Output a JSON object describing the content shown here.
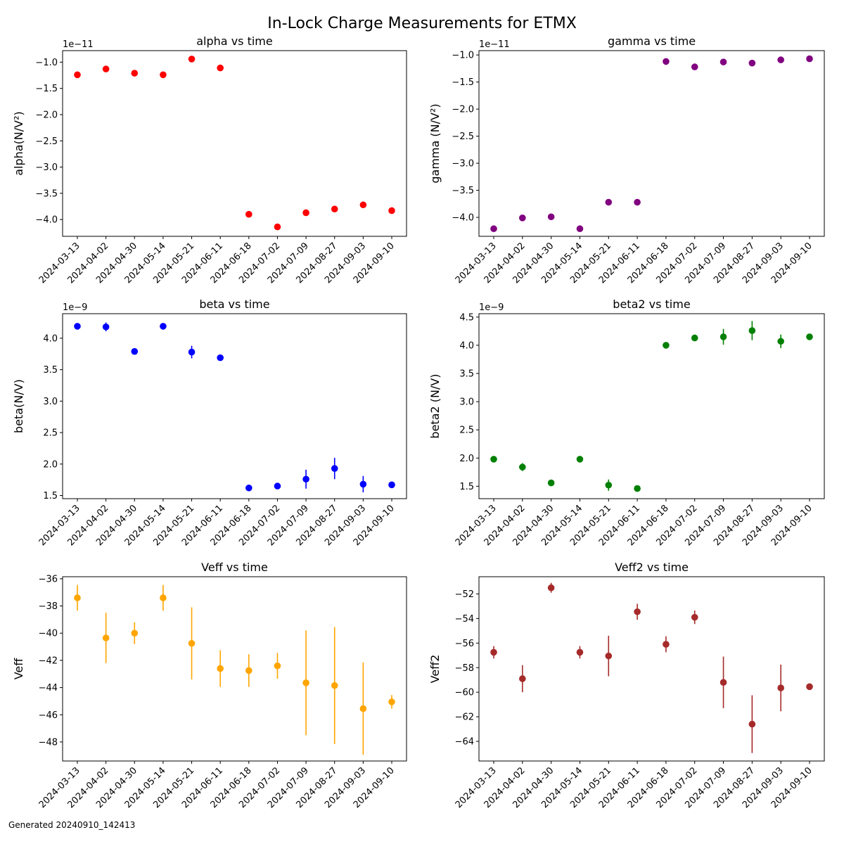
{
  "figure": {
    "title": "In-Lock Charge Measurements for ETMX",
    "footer": "Generated 20240910_142413"
  },
  "chart_data": [
    {
      "type": "scatter",
      "title": "alpha vs time",
      "ylabel": "alpha(N/V²)",
      "offset_label": "1e−11",
      "color": "#ff0000",
      "categories": [
        "2024-03-13",
        "2024-04-02",
        "2024-04-30",
        "2024-05-14",
        "2024-05-21",
        "2024-06-11",
        "2024-06-18",
        "2024-07-02",
        "2024-07-09",
        "2024-08-27",
        "2024-09-03",
        "2024-09-10"
      ],
      "values": [
        -1.24,
        -1.13,
        -1.21,
        -1.24,
        -0.94,
        -1.11,
        -3.9,
        -4.14,
        -3.87,
        -3.8,
        -3.72,
        -3.83
      ],
      "errors": [
        0.02,
        0.02,
        0.02,
        0.02,
        0.02,
        0.02,
        0.02,
        0.02,
        0.02,
        0.02,
        0.02,
        0.02
      ],
      "ylim": [
        -4.32,
        -0.78
      ],
      "yticks": [
        -4.0,
        -3.5,
        -3.0,
        -2.5,
        -2.0,
        -1.5,
        -1.0
      ],
      "yticklabels": [
        "−4.0",
        "−3.5",
        "−3.0",
        "−2.5",
        "−2.0",
        "−1.5",
        "−1.0"
      ]
    },
    {
      "type": "scatter",
      "title": "gamma vs time",
      "ylabel": "gamma (N/V²)",
      "offset_label": "1e−11",
      "color": "#800080",
      "categories": [
        "2024-03-13",
        "2024-04-02",
        "2024-04-30",
        "2024-05-14",
        "2024-05-21",
        "2024-06-11",
        "2024-06-18",
        "2024-07-02",
        "2024-07-09",
        "2024-08-27",
        "2024-09-03",
        "2024-09-10"
      ],
      "values": [
        -4.21,
        -4.01,
        -3.99,
        -4.21,
        -3.72,
        -3.72,
        -1.12,
        -1.22,
        -1.13,
        -1.15,
        -1.09,
        -1.07
      ],
      "errors": [
        0.02,
        0.02,
        0.02,
        0.02,
        0.02,
        0.02,
        0.02,
        0.02,
        0.02,
        0.02,
        0.02,
        0.02
      ],
      "ylim": [
        -4.35,
        -0.92
      ],
      "yticks": [
        -4.0,
        -3.5,
        -3.0,
        -2.5,
        -2.0,
        -1.5,
        -1.0
      ],
      "yticklabels": [
        "−4.0",
        "−3.5",
        "−3.0",
        "−2.5",
        "−2.0",
        "−1.5",
        "−1.0"
      ]
    },
    {
      "type": "scatter",
      "title": "beta vs time",
      "ylabel": "beta(N/V)",
      "offset_label": "1e−9",
      "color": "#0000ff",
      "categories": [
        "2024-03-13",
        "2024-04-02",
        "2024-04-30",
        "2024-05-14",
        "2024-05-21",
        "2024-06-11",
        "2024-06-18",
        "2024-07-02",
        "2024-07-09",
        "2024-08-27",
        "2024-09-03",
        "2024-09-10"
      ],
      "values": [
        4.19,
        4.18,
        3.79,
        4.19,
        3.78,
        3.69,
        1.62,
        1.65,
        1.76,
        1.93,
        1.68,
        1.67
      ],
      "errors": [
        0.03,
        0.07,
        0.03,
        0.03,
        0.1,
        0.03,
        0.03,
        0.03,
        0.15,
        0.17,
        0.13,
        0.03
      ],
      "ylim": [
        1.45,
        4.39
      ],
      "yticks": [
        1.5,
        2.0,
        2.5,
        3.0,
        3.5,
        4.0
      ],
      "yticklabels": [
        "1.5",
        "2.0",
        "2.5",
        "3.0",
        "3.5",
        "4.0"
      ]
    },
    {
      "type": "scatter",
      "title": "beta2 vs time",
      "ylabel": "beta2 (N/V)",
      "offset_label": "1e−9",
      "color": "#008000",
      "categories": [
        "2024-03-13",
        "2024-04-02",
        "2024-04-30",
        "2024-05-14",
        "2024-05-21",
        "2024-06-11",
        "2024-06-18",
        "2024-07-02",
        "2024-07-09",
        "2024-08-27",
        "2024-09-03",
        "2024-09-10"
      ],
      "values": [
        1.98,
        1.84,
        1.56,
        1.98,
        1.52,
        1.46,
        4.0,
        4.13,
        4.15,
        4.26,
        4.07,
        4.15
      ],
      "errors": [
        0.03,
        0.07,
        0.03,
        0.03,
        0.1,
        0.03,
        0.03,
        0.03,
        0.14,
        0.17,
        0.12,
        0.03
      ],
      "ylim": [
        1.28,
        4.56
      ],
      "yticks": [
        1.5,
        2.0,
        2.5,
        3.0,
        3.5,
        4.0,
        4.5
      ],
      "yticklabels": [
        "1.5",
        "2.0",
        "2.5",
        "3.0",
        "3.5",
        "4.0",
        "4.5"
      ]
    },
    {
      "type": "scatter",
      "title": "Veff vs time",
      "ylabel": "Veff",
      "offset_label": "",
      "color": "#ffa500",
      "categories": [
        "2024-03-13",
        "2024-04-02",
        "2024-04-30",
        "2024-05-14",
        "2024-05-21",
        "2024-06-11",
        "2024-06-18",
        "2024-07-02",
        "2024-07-09",
        "2024-08-27",
        "2024-09-03",
        "2024-09-10"
      ],
      "values": [
        -37.4,
        -40.35,
        -40.0,
        -37.4,
        -40.75,
        -42.6,
        -42.75,
        -42.4,
        -43.65,
        -43.85,
        -45.55,
        -45.05
      ],
      "errors": [
        0.95,
        1.85,
        0.8,
        0.95,
        2.65,
        1.35,
        1.2,
        0.95,
        3.85,
        4.3,
        3.4,
        0.5
      ],
      "ylim": [
        -49.4,
        -35.85
      ],
      "yticks": [
        -48,
        -46,
        -44,
        -42,
        -40,
        -38,
        -36
      ],
      "yticklabels": [
        "−48",
        "−46",
        "−44",
        "−42",
        "−40",
        "−38",
        "−36"
      ]
    },
    {
      "type": "scatter",
      "title": "Veff2 vs time",
      "ylabel": "Veff2",
      "offset_label": "",
      "color": "#a52a2a",
      "categories": [
        "2024-03-13",
        "2024-04-02",
        "2024-04-30",
        "2024-05-14",
        "2024-05-21",
        "2024-06-11",
        "2024-06-18",
        "2024-07-02",
        "2024-07-09",
        "2024-08-27",
        "2024-09-03",
        "2024-09-10"
      ],
      "values": [
        -56.75,
        -58.9,
        -51.5,
        -56.75,
        -57.05,
        -53.45,
        -56.1,
        -53.9,
        -59.2,
        -62.6,
        -59.65,
        -59.55
      ],
      "errors": [
        0.5,
        1.1,
        0.4,
        0.5,
        1.65,
        0.65,
        0.65,
        0.55,
        2.1,
        2.35,
        1.9,
        0.2
      ],
      "ylim": [
        -65.6,
        -50.6
      ],
      "yticks": [
        -64,
        -62,
        -60,
        -58,
        -56,
        -54,
        -52
      ],
      "yticklabels": [
        "−64",
        "−62",
        "−60",
        "−58",
        "−56",
        "−54",
        "−52"
      ]
    }
  ]
}
